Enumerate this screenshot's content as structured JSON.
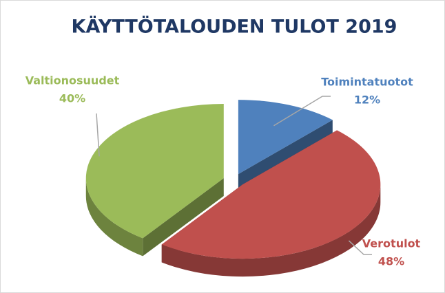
{
  "chart_data": {
    "type": "pie",
    "title": "KÄYTTÖTALOUDEN TULOT 2019",
    "categories": [
      "Toimintatuotot",
      "Verotulot",
      "Valtionosuudet"
    ],
    "values": [
      12,
      48,
      40
    ],
    "value_labels": [
      "12%",
      "48%",
      "40%"
    ],
    "colors": [
      "#4f81bd",
      "#c0504d",
      "#9bbb59"
    ]
  }
}
